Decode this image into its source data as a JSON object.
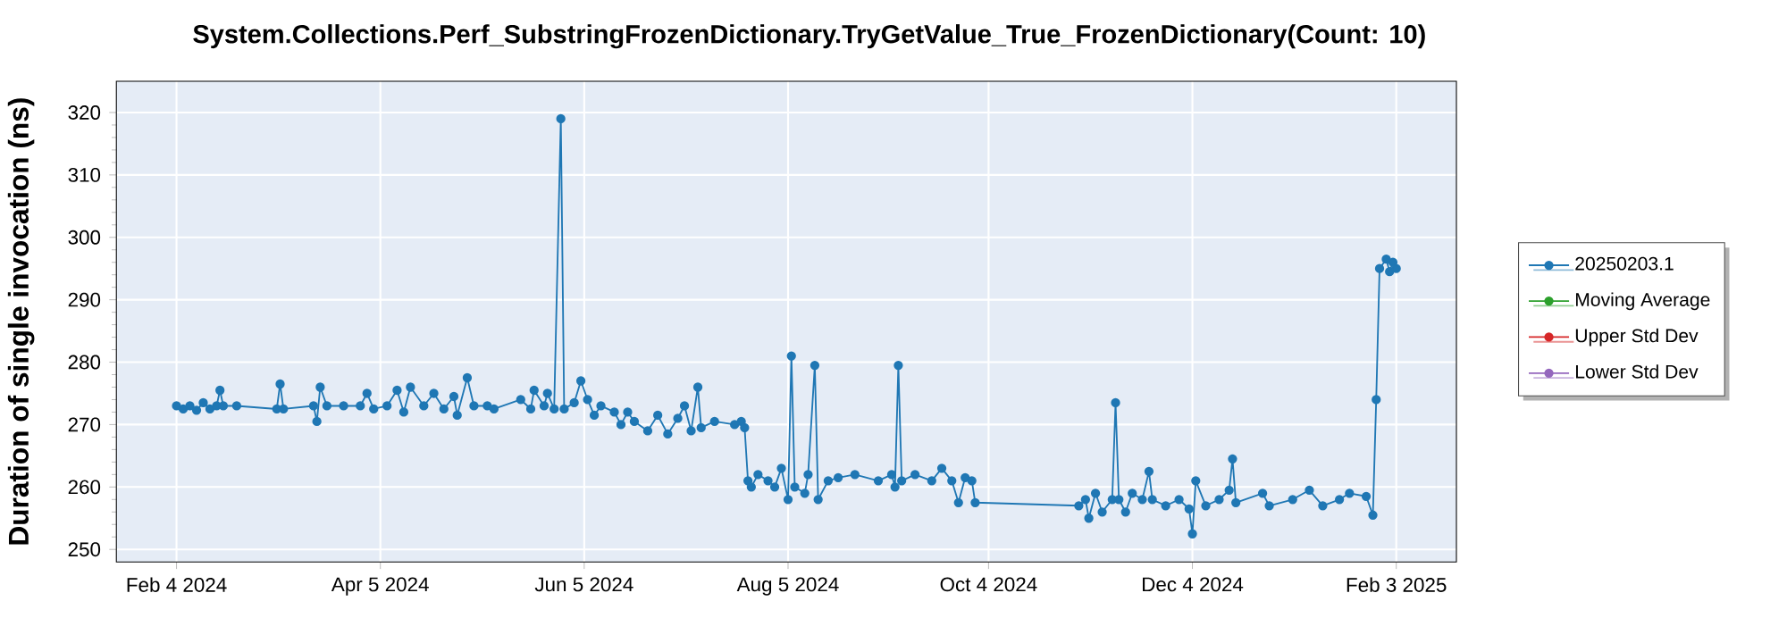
{
  "chart_data": {
    "type": "line",
    "title": "System.Collections.Perf_SubstringFrozenDictionary.TryGetValue_True_FrozenDictionary(Count: 10)",
    "ylabel": "Duration of single invocation (ns)",
    "xlim": [
      "2024-01-17",
      "2025-02-21"
    ],
    "ylim": [
      248,
      325
    ],
    "xticks": [
      {
        "value": "2024-02-04",
        "label": "Feb 4 2024"
      },
      {
        "value": "2024-04-05",
        "label": "Apr 5 2024"
      },
      {
        "value": "2024-06-05",
        "label": "Jun 5 2024"
      },
      {
        "value": "2024-08-05",
        "label": "Aug 5 2024"
      },
      {
        "value": "2024-10-04",
        "label": "Oct 4 2024"
      },
      {
        "value": "2024-12-04",
        "label": "Dec 4 2024"
      },
      {
        "value": "2025-02-03",
        "label": "Feb 3 2025"
      }
    ],
    "yticks": [
      250,
      260,
      270,
      280,
      290,
      300,
      310,
      320
    ],
    "grid": true,
    "legend": "right",
    "marker": "circle",
    "line_style": "solid",
    "series": [
      {
        "name": "20250203.1",
        "color": "#1f77b4",
        "x": [
          "2024-02-04",
          "2024-02-06",
          "2024-02-08",
          "2024-02-10",
          "2024-02-12",
          "2024-02-14",
          "2024-02-16",
          "2024-02-17",
          "2024-02-18",
          "2024-02-22",
          "2024-03-05",
          "2024-03-06",
          "2024-03-07",
          "2024-03-16",
          "2024-03-17",
          "2024-03-18",
          "2024-03-20",
          "2024-03-25",
          "2024-03-30",
          "2024-04-01",
          "2024-04-03",
          "2024-04-07",
          "2024-04-10",
          "2024-04-12",
          "2024-04-14",
          "2024-04-18",
          "2024-04-21",
          "2024-04-24",
          "2024-04-27",
          "2024-04-28",
          "2024-05-01",
          "2024-05-03",
          "2024-05-07",
          "2024-05-09",
          "2024-05-17",
          "2024-05-20",
          "2024-05-21",
          "2024-05-24",
          "2024-05-25",
          "2024-05-27",
          "2024-05-29",
          "2024-05-30",
          "2024-06-02",
          "2024-06-04",
          "2024-06-06",
          "2024-06-08",
          "2024-06-10",
          "2024-06-14",
          "2024-06-16",
          "2024-06-18",
          "2024-06-20",
          "2024-06-24",
          "2024-06-27",
          "2024-06-30",
          "2024-07-03",
          "2024-07-05",
          "2024-07-07",
          "2024-07-09",
          "2024-07-10",
          "2024-07-14",
          "2024-07-20",
          "2024-07-22",
          "2024-07-23",
          "2024-07-24",
          "2024-07-25",
          "2024-07-27",
          "2024-07-30",
          "2024-08-01",
          "2024-08-03",
          "2024-08-05",
          "2024-08-06",
          "2024-08-07",
          "2024-08-10",
          "2024-08-11",
          "2024-08-13",
          "2024-08-14",
          "2024-08-17",
          "2024-08-20",
          "2024-08-25",
          "2024-09-01",
          "2024-09-05",
          "2024-09-06",
          "2024-09-07",
          "2024-09-08",
          "2024-09-12",
          "2024-09-17",
          "2024-09-20",
          "2024-09-23",
          "2024-09-25",
          "2024-09-27",
          "2024-09-29",
          "2024-09-30",
          "2024-10-31",
          "2024-11-02",
          "2024-11-03",
          "2024-11-05",
          "2024-11-07",
          "2024-11-10",
          "2024-11-11",
          "2024-11-12",
          "2024-11-14",
          "2024-11-16",
          "2024-11-19",
          "2024-11-21",
          "2024-11-22",
          "2024-11-26",
          "2024-11-30",
          "2024-12-03",
          "2024-12-04",
          "2024-12-05",
          "2024-12-08",
          "2024-12-12",
          "2024-12-15",
          "2024-12-16",
          "2024-12-17",
          "2024-12-25",
          "2024-12-27",
          "2025-01-03",
          "2025-01-08",
          "2025-01-12",
          "2025-01-17",
          "2025-01-20",
          "2025-01-25",
          "2025-01-27",
          "2025-01-28",
          "2025-01-29",
          "2025-01-31",
          "2025-02-01",
          "2025-02-02",
          "2025-02-03"
        ],
        "values": [
          273,
          272.5,
          273,
          272.3,
          273.5,
          272.5,
          273,
          275.5,
          273,
          273,
          272.5,
          276.5,
          272.5,
          273,
          270.5,
          276,
          273,
          273,
          273,
          275,
          272.5,
          273,
          275.5,
          272,
          276,
          273,
          275,
          272.5,
          274.5,
          271.5,
          277.5,
          273,
          273,
          272.5,
          274,
          272.5,
          275.5,
          273,
          275,
          272.5,
          319,
          272.5,
          273.5,
          277,
          274,
          271.5,
          273,
          272,
          270,
          272,
          270.5,
          269,
          271.5,
          268.5,
          271,
          273,
          269,
          276,
          269.5,
          270.5,
          270,
          270.5,
          269.5,
          261,
          260,
          262,
          261,
          260,
          263,
          258,
          281,
          260,
          259,
          262,
          279.5,
          258,
          261,
          261.5,
          262,
          261,
          262,
          260,
          279.5,
          261,
          262,
          261,
          263,
          261,
          257.5,
          261.5,
          261,
          257.5,
          257,
          258,
          255,
          259,
          256,
          258,
          273.5,
          258,
          256,
          259,
          258,
          262.5,
          258,
          257,
          258,
          256.5,
          252.5,
          261,
          257,
          258,
          259.5,
          264.5,
          257.5,
          259,
          257,
          258,
          259.5,
          257,
          258,
          259,
          258.5,
          255.5,
          274,
          295,
          296.5,
          294.5,
          296,
          295
        ]
      },
      {
        "name": "Moving Average",
        "color": "#2ca02c"
      },
      {
        "name": "Upper Std Dev",
        "color": "#d62728"
      },
      {
        "name": "Lower Std Dev",
        "color": "#9467bd"
      }
    ]
  }
}
